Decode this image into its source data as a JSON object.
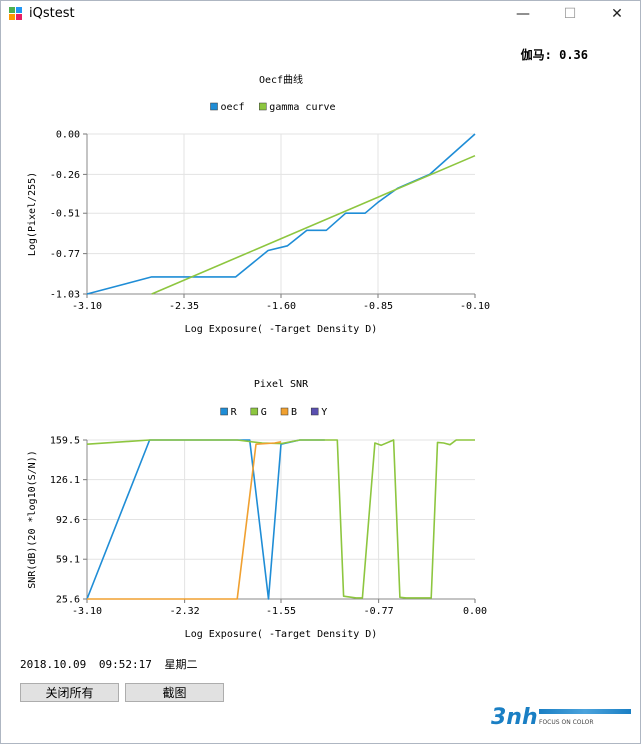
{
  "window": {
    "title": "iQstest",
    "minimize": "—",
    "maximize": "☐",
    "close": "✕"
  },
  "gamma_readout": "伽马: 0.36",
  "chart_data": [
    {
      "type": "line",
      "title": "Oecf曲线",
      "xlabel": "Log Exposure( -Target Density D)",
      "ylabel": "Log(Pixel/255)",
      "xlim": [
        -3.1,
        -0.1
      ],
      "ylim": [
        -1.03,
        0.0
      ],
      "xticks": [
        -3.1,
        -2.35,
        -1.6,
        -0.85,
        -0.1
      ],
      "xtick_labels": [
        "-3.10",
        "-2.35",
        "-1.60",
        "-0.85",
        "-0.10"
      ],
      "yticks": [
        0.0,
        -0.26,
        -0.51,
        -0.77,
        -1.03
      ],
      "ytick_labels": [
        "0.00",
        "-0.26",
        "-0.51",
        "-0.77",
        "-1.03"
      ],
      "grid": true,
      "legend": "top-center",
      "series": [
        {
          "name": "oecf",
          "color": "#1f8dd6",
          "x": [
            -3.1,
            -2.6,
            -2.45,
            -1.95,
            -1.7,
            -1.55,
            -1.4,
            -1.25,
            -1.1,
            -0.95,
            -0.85,
            -0.7,
            -0.45,
            -0.1
          ],
          "y": [
            -1.03,
            -0.92,
            -0.92,
            -0.92,
            -0.75,
            -0.72,
            -0.62,
            -0.62,
            -0.51,
            -0.51,
            -0.44,
            -0.35,
            -0.26,
            0.0
          ]
        },
        {
          "name": "gamma curve",
          "color": "#8dc63f",
          "x": [
            -2.6,
            -0.1
          ],
          "y": [
            -1.03,
            -0.14
          ]
        }
      ]
    },
    {
      "type": "line",
      "title": "Pixel SNR",
      "xlabel": "Log Exposure( -Target Density D)",
      "ylabel": "SNR(dB)(20 *log10(S/N))",
      "xlim": [
        -3.1,
        0.0
      ],
      "ylim": [
        25.6,
        159.5
      ],
      "xticks": [
        -3.1,
        -2.32,
        -1.55,
        -0.77,
        0.0
      ],
      "xtick_labels": [
        "-3.10",
        "-2.32",
        "-1.55",
        "-0.77",
        "0.00"
      ],
      "yticks": [
        159.5,
        126.1,
        92.6,
        59.1,
        25.6
      ],
      "ytick_labels": [
        "159.5",
        "126.1",
        "92.6",
        "59.1",
        "25.6"
      ],
      "grid": true,
      "legend": "top-center",
      "series": [
        {
          "name": "R",
          "color": "#1f8dd6",
          "x": [
            -3.1,
            -2.6,
            -1.9,
            -1.8,
            -1.65,
            -1.55,
            -1.4,
            -1.2
          ],
          "y": [
            25.6,
            159.5,
            159.5,
            159.5,
            25.6,
            156.0,
            159.5,
            159.5
          ]
        },
        {
          "name": "G",
          "color": "#8dc63f",
          "x": [
            -3.1,
            -2.6,
            -1.9,
            -1.7,
            -1.55,
            -1.4,
            -1.2,
            -1.1,
            -1.05,
            -0.95,
            -0.9,
            -0.8,
            -0.75,
            -0.65,
            -0.6,
            -0.55,
            -0.35,
            -0.3,
            -0.25,
            -0.2,
            -0.15,
            -0.1,
            0.0
          ],
          "y": [
            156.0,
            159.5,
            159.5,
            157.0,
            156.5,
            159.5,
            159.5,
            159.5,
            28.0,
            26.5,
            26.5,
            157.0,
            155.0,
            159.5,
            27.0,
            26.5,
            26.5,
            157.5,
            157.0,
            155.5,
            159.5,
            159.5,
            159.5
          ]
        },
        {
          "name": "B",
          "color": "#f0a030",
          "x": [
            -3.1,
            -1.9,
            -1.75,
            -1.6,
            -1.55
          ],
          "y": [
            25.6,
            25.6,
            156.0,
            157.0,
            158.0
          ]
        },
        {
          "name": "Y",
          "color": "#5a4fb0",
          "x": [],
          "y": []
        }
      ]
    }
  ],
  "status_bar": {
    "date": "2018.10.09",
    "time": "09:52:17",
    "weekday": "星期二"
  },
  "buttons": {
    "close_all": "关闭所有",
    "screenshot": "截图"
  },
  "logo": {
    "mark": "3nh",
    "tagline": "FOCUS ON COLOR"
  }
}
